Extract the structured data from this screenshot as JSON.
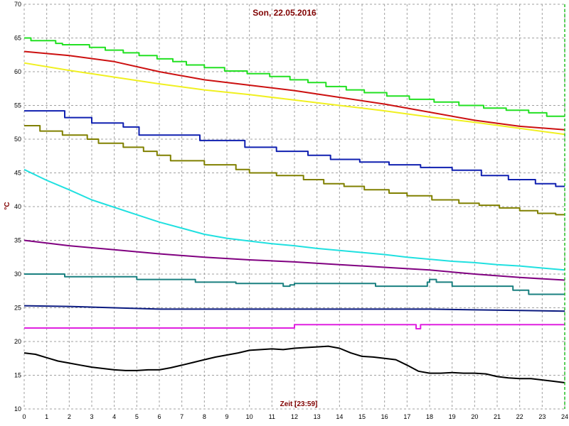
{
  "chart_data": {
    "type": "line",
    "title": "Son, 22.05.2016",
    "xlabel": "Zeit [23:59]",
    "ylabel": "°C",
    "xlim": [
      0,
      24
    ],
    "ylim": [
      10,
      70
    ],
    "x_ticks": [
      0,
      1,
      2,
      3,
      4,
      5,
      6,
      7,
      8,
      9,
      10,
      11,
      12,
      13,
      14,
      15,
      16,
      17,
      18,
      19,
      20,
      21,
      22,
      23,
      24
    ],
    "y_ticks": [
      10,
      15,
      20,
      25,
      30,
      35,
      40,
      45,
      50,
      55,
      60,
      65,
      70
    ],
    "grid": true,
    "series": [
      {
        "color": "#22e022",
        "step": true,
        "x": [
          0,
          0.3,
          1.4,
          1.7,
          2.9,
          3.6,
          4.4,
          5.1,
          5.9,
          6.6,
          7.2,
          8.0,
          8.9,
          9.9,
          10.9,
          11.8,
          12.6,
          13.4,
          14.3,
          15.1,
          16.1,
          17.1,
          18.2,
          19.3,
          20.4,
          21.4,
          22.4,
          23.2,
          24
        ],
        "y": [
          65,
          64.6,
          64.2,
          64.0,
          63.6,
          63.2,
          62.8,
          62.4,
          61.9,
          61.5,
          61.0,
          60.6,
          60.1,
          59.7,
          59.3,
          58.8,
          58.4,
          57.8,
          57.3,
          56.9,
          56.4,
          55.9,
          55.5,
          55.0,
          54.6,
          54.3,
          53.9,
          53.4,
          53.4
        ]
      },
      {
        "color": "#cc1010",
        "step": false,
        "x": [
          0,
          2,
          4,
          6,
          8,
          10,
          12,
          14,
          16,
          18,
          20,
          22,
          24
        ],
        "y": [
          63,
          62.4,
          61.5,
          60.0,
          58.8,
          58.0,
          57.2,
          56.2,
          55.2,
          54.0,
          52.8,
          51.9,
          51.4
        ]
      },
      {
        "color": "#f0f020",
        "step": false,
        "x": [
          0,
          2,
          4,
          6,
          8,
          10,
          12,
          14,
          16,
          18,
          20,
          22,
          24
        ],
        "y": [
          61.3,
          60.2,
          59.2,
          58.2,
          57.3,
          56.6,
          55.8,
          55.0,
          54.2,
          53.3,
          52.5,
          51.6,
          50.7
        ]
      },
      {
        "color": "#1020b0",
        "step": true,
        "x": [
          0,
          1.8,
          3.0,
          4.4,
          5.1,
          7.8,
          9.8,
          11.2,
          12.6,
          13.6,
          14.9,
          16.2,
          17.6,
          19.0,
          20.3,
          21.5,
          22.7,
          23.6,
          24
        ],
        "y": [
          54.2,
          53.2,
          52.4,
          51.8,
          50.6,
          49.8,
          48.8,
          48.2,
          47.6,
          47.0,
          46.6,
          46.2,
          45.8,
          45.4,
          44.6,
          44.0,
          43.4,
          43.0,
          43.0
        ]
      },
      {
        "color": "#808000",
        "step": true,
        "x": [
          0,
          0.7,
          1.7,
          2.8,
          3.3,
          4.4,
          5.3,
          5.9,
          6.5,
          8.0,
          9.4,
          10.0,
          11.2,
          12.4,
          13.3,
          14.2,
          15.1,
          16.2,
          17.0,
          18.1,
          19.3,
          20.2,
          21.1,
          22.0,
          22.8,
          23.6,
          24
        ],
        "y": [
          52,
          51.2,
          50.6,
          50.0,
          49.4,
          48.8,
          48.2,
          47.6,
          46.8,
          46.2,
          45.5,
          45.0,
          44.6,
          44.0,
          43.4,
          43.0,
          42.5,
          42.0,
          41.6,
          41.0,
          40.5,
          40.2,
          39.8,
          39.4,
          39.0,
          38.8,
          38.8
        ]
      },
      {
        "color": "#20e0e0",
        "step": false,
        "x": [
          0,
          1,
          2,
          3,
          4,
          5,
          6,
          7,
          8,
          9,
          10,
          11,
          12,
          13,
          14,
          15,
          16,
          17,
          18,
          19,
          20,
          21,
          22,
          23,
          24
        ],
        "y": [
          45.5,
          43.9,
          42.5,
          41.0,
          39.9,
          38.8,
          37.7,
          36.8,
          35.9,
          35.3,
          34.9,
          34.5,
          34.2,
          33.8,
          33.5,
          33.2,
          32.9,
          32.5,
          32.2,
          31.9,
          31.7,
          31.4,
          31.2,
          30.9,
          30.6
        ]
      },
      {
        "color": "#800080",
        "step": false,
        "x": [
          0,
          2,
          4,
          6,
          8,
          10,
          12,
          14,
          16,
          18,
          20,
          22,
          24
        ],
        "y": [
          35.0,
          34.2,
          33.6,
          33.0,
          32.5,
          32.1,
          31.8,
          31.4,
          31.0,
          30.6,
          30.0,
          29.5,
          29.1
        ]
      },
      {
        "color": "#1a8080",
        "step": true,
        "x": [
          0,
          1.8,
          5.0,
          7.6,
          9.4,
          11.5,
          11.8,
          12.0,
          12.2,
          13.9,
          15.6,
          17.7,
          17.9,
          18.0,
          18.3,
          19.0,
          21.7,
          22.4,
          24
        ],
        "y": [
          30.0,
          29.6,
          29.2,
          28.8,
          28.6,
          28.2,
          28.4,
          28.6,
          28.6,
          28.6,
          28.2,
          28.2,
          28.8,
          29.2,
          28.8,
          28.2,
          27.6,
          27.0,
          27.0
        ]
      },
      {
        "color": "#0a1a80",
        "step": false,
        "x": [
          0,
          2,
          4,
          6,
          8,
          10,
          12,
          14,
          16,
          18,
          20,
          22,
          24
        ],
        "y": [
          25.3,
          25.2,
          25.0,
          24.8,
          24.8,
          24.8,
          24.8,
          24.8,
          24.8,
          24.8,
          24.7,
          24.6,
          24.5
        ]
      },
      {
        "color": "#e020e0",
        "step": true,
        "x": [
          0,
          12.0,
          17.4,
          17.6,
          24
        ],
        "y": [
          22.0,
          22.5,
          21.9,
          22.5,
          22.5
        ]
      },
      {
        "color": "#000000",
        "step": false,
        "x": [
          0,
          0.5,
          1,
          1.5,
          2,
          2.5,
          3,
          3.5,
          4,
          4.5,
          5,
          5.5,
          6,
          6.5,
          7,
          7.5,
          8,
          8.5,
          9,
          9.5,
          10,
          10.5,
          11,
          11.5,
          12,
          12.5,
          13,
          13.5,
          14,
          14.5,
          15,
          15.5,
          16,
          16.5,
          17,
          17.5,
          18,
          18.5,
          19,
          19.5,
          20,
          20.5,
          21,
          21.5,
          22,
          22.5,
          23,
          23.5,
          24
        ],
        "y": [
          18.3,
          18.1,
          17.6,
          17.1,
          16.8,
          16.5,
          16.2,
          16.0,
          15.8,
          15.7,
          15.7,
          15.8,
          15.8,
          16.1,
          16.5,
          16.9,
          17.3,
          17.7,
          18.0,
          18.3,
          18.7,
          18.8,
          18.9,
          18.8,
          19.0,
          19.1,
          19.2,
          19.3,
          19.0,
          18.3,
          17.8,
          17.7,
          17.5,
          17.3,
          16.5,
          15.6,
          15.3,
          15.3,
          15.4,
          15.3,
          15.3,
          15.2,
          14.8,
          14.6,
          14.5,
          14.5,
          14.3,
          14.1,
          13.9
        ]
      }
    ]
  }
}
